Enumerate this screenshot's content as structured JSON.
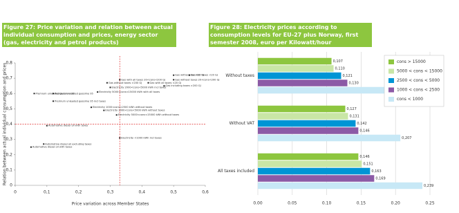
{
  "chart_data": [
    {
      "type": "scatter",
      "title": "Figure 27: Price variation and relation between actual individual consumption and prices, energy sector (gas, electricity and petrol products)",
      "x_label": "Price variation across Member States",
      "y_label": "Relation between actual individual consumption and prices",
      "x": [
        0.5,
        0.55,
        0.33,
        0.5,
        0.29,
        0.42,
        0.47,
        0.3,
        0.26,
        0.06,
        0.12,
        0.12,
        0.24,
        0.28,
        0.32,
        0.33,
        0.1,
        0.09,
        0.05
      ],
      "values": [
        0.72,
        0.72,
        0.69,
        0.69,
        0.67,
        0.67,
        0.65,
        0.64,
        0.61,
        0.6,
        0.6,
        0.55,
        0.51,
        0.49,
        0.46,
        0.31,
        0.39,
        0.27,
        0.25
      ],
      "labels": [
        "Gas without tax <20 GJ",
        "Gas incl taxes <20 GJ",
        "Gas with all taxes 20<cons<200 GJ",
        "Gas without taxes 20<cons<200 GJ",
        "Gas without taxes >200 GJ",
        "Gas with all taxes <20 GJ",
        "Gas including taxes >200 GJ",
        "Electricity 2000<cons<5000 kWh incl taxes",
        "Electricity 5000<cons<15000 kWh with all taxes",
        "Premium unleaded gasoline 95",
        "Premium unleaded gasoline 95",
        "Premium unleaded gasoline 95 incl taxes",
        "Electricity 1000<cons<2500 kWh without taxes",
        "Electricity 2000<cons<5000 kWh without taxes",
        "Electricity 5000<cons<15000 kWh without taxes",
        "Electricity <1000 kWh incl taxes",
        "Automotive diesel oil with taxes",
        "Automotive diesel oil excluding taxes",
        "Automotive diesel oil with taxes"
      ],
      "color": "#222222",
      "reference_lines": {
        "x": 0.33,
        "y": 0.4,
        "color": "#e03030"
      },
      "xlim": [
        0,
        0.6
      ],
      "xticks": [
        0,
        {
          "value": 0.1,
          "label": "0,1"
        },
        {
          "value": 0.2,
          "label": "0,2"
        },
        {
          "value": 0.3,
          "label": "0,3"
        },
        {
          "value": 0.4,
          "label": "0,4"
        },
        {
          "value": 0.5,
          "label": "0,5"
        },
        {
          "value": 0.6,
          "label": "0,6"
        }
      ],
      "ylim": [
        0,
        0.8
      ],
      "yticks": [
        0,
        {
          "value": 0.1,
          "label": "0,1"
        },
        {
          "value": 0.2,
          "label": "0,2"
        },
        {
          "value": 0.3,
          "label": "0,3"
        },
        {
          "value": 0.4,
          "label": "0,4"
        },
        {
          "value": 0.5,
          "label": "0,5"
        },
        {
          "value": 0.6,
          "label": "0,6"
        },
        {
          "value": 0.7,
          "label": "0,7"
        },
        {
          "value": 0.8,
          "label": "0,8"
        }
      ]
    },
    {
      "type": "hbar",
      "title": "Figure 28: Electricity prices according to consumption levels for EU-27 plus Norway, first semester 2008, euro per Kilowatt/hour",
      "categories": [
        "Without taxes",
        "Without VAT",
        "All taxes included"
      ],
      "series": [
        {
          "name": "cons > 15000",
          "color": "#8dc63f",
          "values": [
            0.107,
            0.127,
            0.146
          ],
          "value_labels": [
            "0,107",
            "0,127",
            "0,146"
          ]
        },
        {
          "name": "5000 < cons < 15000",
          "color": "#c9e6a6",
          "values": [
            0.11,
            0.131,
            0.151
          ],
          "value_labels": [
            "0,110",
            "0,131",
            "0,151"
          ]
        },
        {
          "name": "2500 < cons < 5000",
          "color": "#0095d5",
          "values": [
            0.121,
            0.142,
            0.163
          ],
          "value_labels": [
            "0,121",
            "0,142",
            "0,163"
          ]
        },
        {
          "name": "1000 < cons < 2500",
          "color": "#8c5aa6",
          "values": [
            0.13,
            0.146,
            0.169
          ],
          "value_labels": [
            "0,130",
            "0,146",
            "0,169"
          ]
        },
        {
          "name": "cons < 1000",
          "color": "#c7e8f6",
          "values": [
            0.187,
            0.207,
            0.239
          ],
          "value_labels": [
            "0,187",
            "0,207",
            "0,239"
          ]
        }
      ],
      "xlim": [
        0,
        0.25
      ],
      "xticks": [
        {
          "value": 0,
          "label": "0.00"
        },
        {
          "value": 0.05,
          "label": "0.05"
        },
        {
          "value": 0.1,
          "label": "0.10"
        },
        0.15,
        {
          "value": 0.2,
          "label": "0.20"
        },
        0.25
      ],
      "grid": true,
      "legend": "upper right"
    }
  ]
}
